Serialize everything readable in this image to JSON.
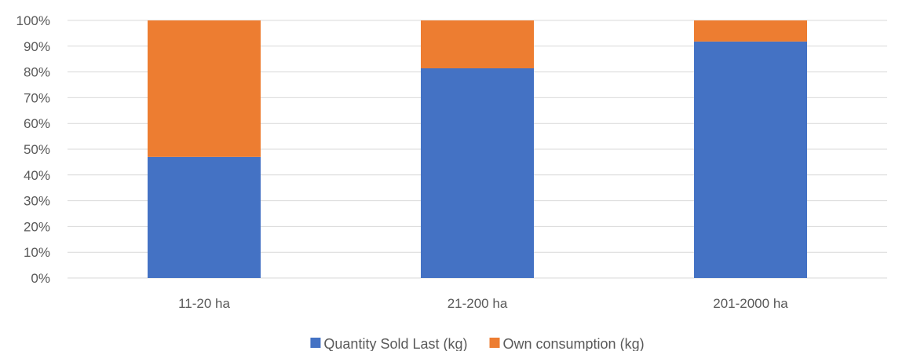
{
  "chart_data": {
    "type": "bar",
    "stacked": true,
    "percent_stacked": true,
    "categories": [
      "11-20 ha",
      "21-200 ha",
      "201-2000 ha"
    ],
    "series": [
      {
        "name": "Quantity Sold Last (kg)",
        "color": "#4472C4",
        "values": [
          47,
          81.4,
          91.8
        ]
      },
      {
        "name": "Own consumption (kg)",
        "color": "#ED7D31",
        "values": [
          53,
          18.6,
          8.2
        ]
      }
    ],
    "y_ticks": [
      "0%",
      "10%",
      "20%",
      "30%",
      "40%",
      "50%",
      "60%",
      "70%",
      "80%",
      "90%",
      "100%"
    ],
    "ylim": [
      0,
      100
    ],
    "grid": true,
    "legend_position": "bottom"
  }
}
